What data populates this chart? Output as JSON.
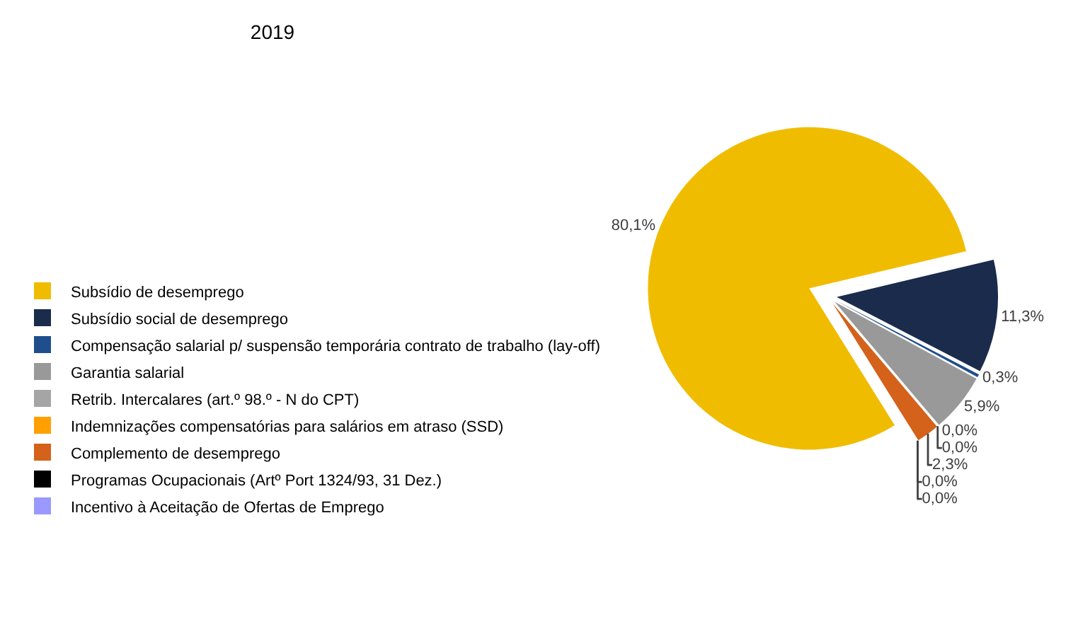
{
  "chart_data": {
    "type": "pie",
    "title": "2019",
    "categories": [
      "Subsídio de desemprego",
      "Subsídio social de desemprego",
      "Compensação salarial p/ suspensão temporária contrato de trabalho (lay-off)",
      "Garantia salarial",
      "Retrib. Intercalares (art.º 98.º - N do CPT)",
      "Indemnizações compensatórias para salários em atraso (SSD)",
      "Complemento de desemprego",
      "Programas Ocupacionais (Artº Port 1324/93, 31 Dez.)",
      "Incentivo à Aceitação de Ofertas de Emprego"
    ],
    "values": [
      80.1,
      11.3,
      0.3,
      5.9,
      0.0,
      0.0,
      2.3,
      0.0,
      0.0
    ],
    "value_labels": [
      "80,1%",
      "11,3%",
      "0,3%",
      "5,9%",
      "0,0%",
      "0,0%",
      "2,3%",
      "0,0%",
      "0,0%"
    ],
    "colors": [
      "#f0bc00",
      "#1a2b4c",
      "#1f4e8c",
      "#999999",
      "#a5a5a5",
      "#ff9f00",
      "#d4621a",
      "#000000",
      "#9999ff"
    ],
    "legend": "bottom left"
  }
}
